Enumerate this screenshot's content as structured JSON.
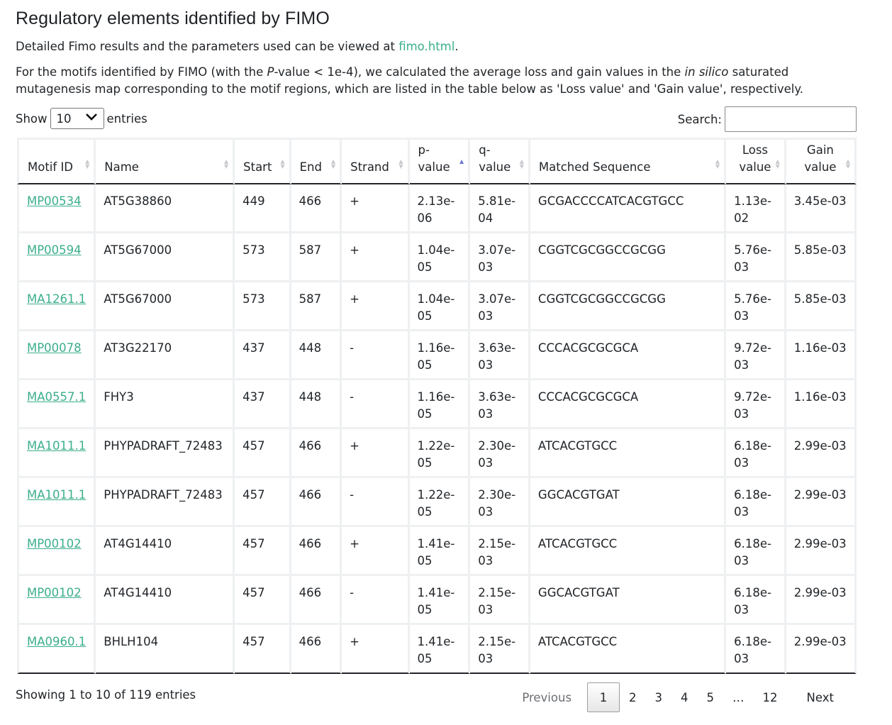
{
  "title": "Regulatory elements identified by FIMO",
  "intro": {
    "pre": "Detailed Fimo results and the parameters used can be viewed at ",
    "link": "fimo.html",
    "post": "."
  },
  "description": {
    "part1": "For the motifs identified by FIMO (with the ",
    "italic1": "P",
    "part2": "-value < 1e-4), we calculated the average loss and gain values in the ",
    "italic2": "in silico",
    "part3": " saturated mutagenesis map corresponding to the motif regions, which are listed in the table below as 'Loss value' and 'Gain value', respectively."
  },
  "length_control": {
    "show": "Show",
    "value": "10",
    "entries": "entries"
  },
  "search": {
    "label": "Search:",
    "value": ""
  },
  "table": {
    "headers": {
      "motif_id": "Motif ID",
      "name": "Name",
      "start": "Start",
      "end": "End",
      "strand": "Strand",
      "p_top": "p-",
      "p_bottom": "value",
      "q_top": "q-",
      "q_bottom": "value",
      "matched": "Matched Sequence",
      "loss_top": "Loss",
      "loss_bottom": "value",
      "gain_top": "Gain",
      "gain_bottom": "value"
    },
    "sorted_column": "p-value",
    "sort_direction": "ascending",
    "rows": [
      {
        "id": "MP00534",
        "name": "AT5G38860",
        "start": "449",
        "end": "466",
        "strand": "+",
        "p1": "2.13e-",
        "p2": "06",
        "q1": "5.81e-",
        "q2": "04",
        "seq": "GCGACCCCATCACGTGCC",
        "l1": "1.13e-",
        "l2": "02",
        "gain": "3.45e-03"
      },
      {
        "id": "MP00594",
        "name": "AT5G67000",
        "start": "573",
        "end": "587",
        "strand": "+",
        "p1": "1.04e-",
        "p2": "05",
        "q1": "3.07e-",
        "q2": "03",
        "seq": "CGGTCGCGGCCGCGG",
        "l1": "5.76e-",
        "l2": "03",
        "gain": "5.85e-03"
      },
      {
        "id": "MA1261.1",
        "name": "AT5G67000",
        "start": "573",
        "end": "587",
        "strand": "+",
        "p1": "1.04e-",
        "p2": "05",
        "q1": "3.07e-",
        "q2": "03",
        "seq": "CGGTCGCGGCCGCGG",
        "l1": "5.76e-",
        "l2": "03",
        "gain": "5.85e-03"
      },
      {
        "id": "MP00078",
        "name": "AT3G22170",
        "start": "437",
        "end": "448",
        "strand": "-",
        "p1": "1.16e-",
        "p2": "05",
        "q1": "3.63e-",
        "q2": "03",
        "seq": "CCCACGCGCGCA",
        "l1": "9.72e-",
        "l2": "03",
        "gain": "1.16e-03"
      },
      {
        "id": "MA0557.1",
        "name": "FHY3",
        "start": "437",
        "end": "448",
        "strand": "-",
        "p1": "1.16e-",
        "p2": "05",
        "q1": "3.63e-",
        "q2": "03",
        "seq": "CCCACGCGCGCA",
        "l1": "9.72e-",
        "l2": "03",
        "gain": "1.16e-03"
      },
      {
        "id": "MA1011.1",
        "name": "PHYPADRAFT_72483",
        "start": "457",
        "end": "466",
        "strand": "+",
        "p1": "1.22e-",
        "p2": "05",
        "q1": "2.30e-",
        "q2": "03",
        "seq": "ATCACGTGCC",
        "l1": "6.18e-",
        "l2": "03",
        "gain": "2.99e-03"
      },
      {
        "id": "MA1011.1",
        "name": "PHYPADRAFT_72483",
        "start": "457",
        "end": "466",
        "strand": "-",
        "p1": "1.22e-",
        "p2": "05",
        "q1": "2.30e-",
        "q2": "03",
        "seq": "GGCACGTGAT",
        "l1": "6.18e-",
        "l2": "03",
        "gain": "2.99e-03"
      },
      {
        "id": "MP00102",
        "name": "AT4G14410",
        "start": "457",
        "end": "466",
        "strand": "+",
        "p1": "1.41e-",
        "p2": "05",
        "q1": "2.15e-",
        "q2": "03",
        "seq": "ATCACGTGCC",
        "l1": "6.18e-",
        "l2": "03",
        "gain": "2.99e-03"
      },
      {
        "id": "MP00102",
        "name": "AT4G14410",
        "start": "457",
        "end": "466",
        "strand": "-",
        "p1": "1.41e-",
        "p2": "05",
        "q1": "2.15e-",
        "q2": "03",
        "seq": "GGCACGTGAT",
        "l1": "6.18e-",
        "l2": "03",
        "gain": "2.99e-03"
      },
      {
        "id": "MA0960.1",
        "name": "BHLH104",
        "start": "457",
        "end": "466",
        "strand": "+",
        "p1": "1.41e-",
        "p2": "05",
        "q1": "2.15e-",
        "q2": "03",
        "seq": "ATCACGTGCC",
        "l1": "6.18e-",
        "l2": "03",
        "gain": "2.99e-03"
      }
    ]
  },
  "info": "Showing 1 to 10 of 119 entries",
  "pagination": {
    "previous": "Previous",
    "pages": [
      "1",
      "2",
      "3",
      "4",
      "5"
    ],
    "ellipsis": "…",
    "last": "12",
    "next": "Next",
    "current": "1"
  },
  "colors": {
    "link": "#3bae8c",
    "sort_active": "#6d79d6",
    "border": "#eef0f2"
  }
}
